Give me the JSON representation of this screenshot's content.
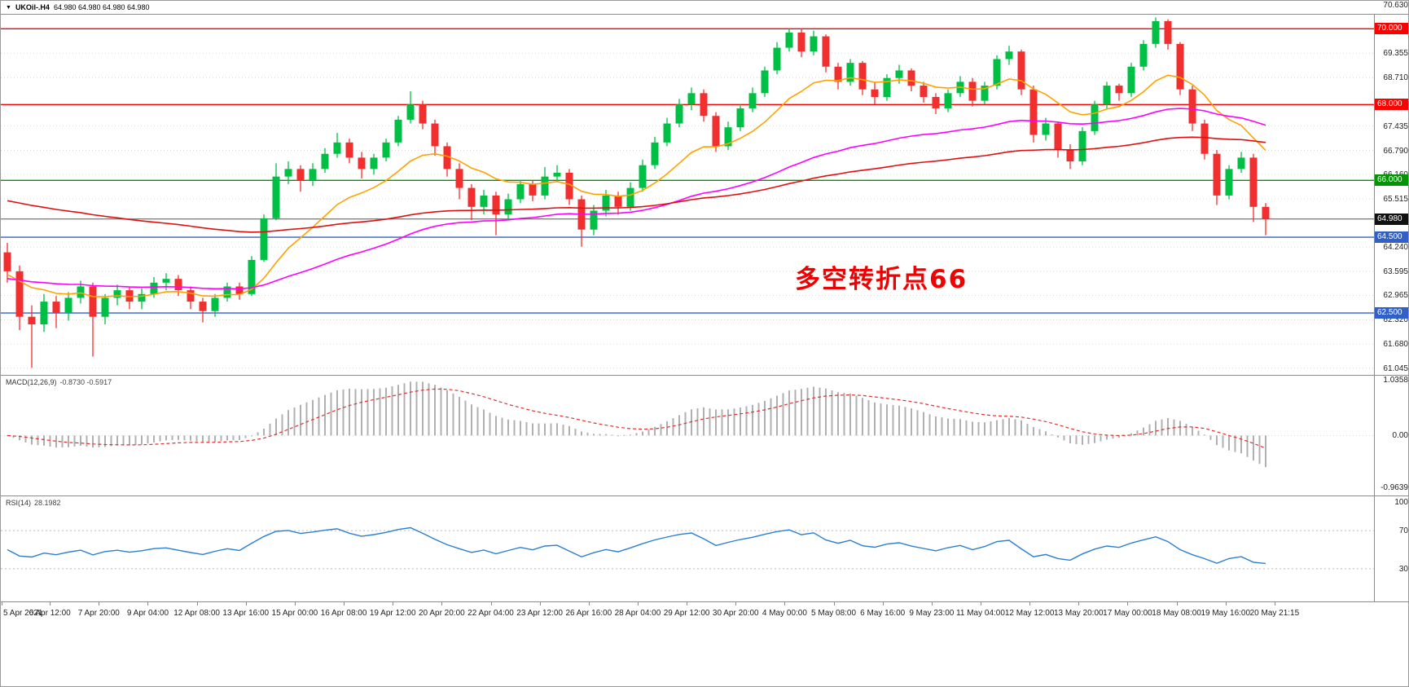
{
  "header": {
    "symbol": "UKOil-.H4",
    "ohlc": "64.980 64.980 64.980 64.980"
  },
  "chart_data": {
    "type": "candlestick",
    "symbol": "UKOil-",
    "timeframe": "H4",
    "title": "UKOil-.H4 64.980 64.980 64.980 64.980",
    "price_axis": {
      "max": 70.63,
      "min": 61.045,
      "labels": [
        "70.630",
        "69.355",
        "68.710",
        "67.435",
        "66.790",
        "66.160",
        "65.515",
        "64.240",
        "63.595",
        "62.965",
        "62.320",
        "61.680",
        "61.045"
      ]
    },
    "hlines": [
      {
        "label": "70.000",
        "color_key": "level_red"
      },
      {
        "label": "68.000",
        "color_key": "level_red"
      },
      {
        "label": "66.000",
        "color_key": "level_green"
      },
      {
        "label": "64.500",
        "color_key": "level_blue"
      },
      {
        "label": "62.500",
        "color_key": "level_blue"
      }
    ],
    "current_price": {
      "label": "64.980"
    },
    "annotation": {
      "text": "多空转折点66",
      "color": "#f00000"
    },
    "time_labels": [
      "5 Apr 2021",
      "6 Apr 12:00",
      "7 Apr 20:00",
      "9 Apr 04:00",
      "12 Apr 08:00",
      "13 Apr 16:00",
      "15 Apr 00:00",
      "16 Apr 08:00",
      "19 Apr 12:00",
      "20 Apr 20:00",
      "22 Apr 04:00",
      "23 Apr 12:00",
      "26 Apr 16:00",
      "28 Apr 04:00",
      "29 Apr 12:00",
      "30 Apr 20:00",
      "4 May 00:00",
      "5 May 08:00",
      "6 May 16:00",
      "9 May 23:00",
      "11 May 04:00",
      "12 May 12:00",
      "13 May 20:00",
      "17 May 00:00",
      "18 May 08:00",
      "19 May 16:00",
      "20 May 21:15"
    ],
    "candles": [
      [
        64.1,
        64.35,
        63.3,
        63.6
      ],
      [
        63.6,
        63.75,
        62.05,
        62.4
      ],
      [
        62.4,
        62.7,
        61.05,
        62.2
      ],
      [
        62.2,
        63.0,
        62.0,
        62.8
      ],
      [
        62.8,
        62.95,
        62.1,
        62.5
      ],
      [
        62.5,
        63.05,
        62.3,
        62.9
      ],
      [
        62.9,
        63.35,
        62.75,
        63.2
      ],
      [
        63.2,
        63.3,
        61.35,
        62.4
      ],
      [
        62.4,
        63.0,
        62.2,
        62.9
      ],
      [
        62.9,
        63.25,
        62.7,
        63.1
      ],
      [
        63.1,
        63.2,
        62.6,
        62.8
      ],
      [
        62.8,
        63.15,
        62.6,
        63.0
      ],
      [
        63.0,
        63.45,
        62.9,
        63.3
      ],
      [
        63.3,
        63.55,
        63.1,
        63.4
      ],
      [
        63.4,
        63.5,
        62.95,
        63.1
      ],
      [
        63.1,
        63.2,
        62.6,
        62.8
      ],
      [
        62.8,
        62.9,
        62.25,
        62.55
      ],
      [
        62.55,
        63.0,
        62.4,
        62.9
      ],
      [
        62.9,
        63.3,
        62.8,
        63.2
      ],
      [
        63.2,
        63.3,
        62.85,
        63.0
      ],
      [
        63.0,
        64.0,
        62.95,
        63.9
      ],
      [
        63.9,
        65.1,
        63.85,
        65.0
      ],
      [
        65.0,
        66.45,
        64.95,
        66.1
      ],
      [
        66.1,
        66.5,
        65.9,
        66.3
      ],
      [
        66.3,
        66.4,
        65.7,
        66.0
      ],
      [
        66.0,
        66.45,
        65.85,
        66.3
      ],
      [
        66.3,
        66.85,
        66.2,
        66.7
      ],
      [
        66.7,
        67.25,
        66.6,
        67.0
      ],
      [
        67.0,
        67.1,
        66.45,
        66.6
      ],
      [
        66.6,
        66.75,
        66.05,
        66.3
      ],
      [
        66.3,
        66.7,
        66.15,
        66.6
      ],
      [
        66.6,
        67.1,
        66.5,
        67.0
      ],
      [
        67.0,
        67.7,
        66.9,
        67.6
      ],
      [
        67.6,
        68.35,
        67.5,
        68.0
      ],
      [
        68.0,
        68.1,
        67.35,
        67.5
      ],
      [
        67.5,
        67.6,
        66.65,
        66.9
      ],
      [
        66.9,
        67.0,
        66.1,
        66.3
      ],
      [
        66.3,
        66.45,
        65.5,
        65.8
      ],
      [
        65.8,
        65.9,
        64.95,
        65.3
      ],
      [
        65.3,
        65.75,
        65.1,
        65.6
      ],
      [
        65.6,
        65.7,
        64.55,
        65.1
      ],
      [
        65.1,
        65.65,
        64.95,
        65.5
      ],
      [
        65.5,
        66.0,
        65.4,
        65.9
      ],
      [
        65.9,
        66.0,
        65.45,
        65.6
      ],
      [
        65.6,
        66.35,
        65.5,
        66.1
      ],
      [
        66.1,
        66.4,
        65.95,
        66.2
      ],
      [
        66.2,
        66.3,
        65.35,
        65.5
      ],
      [
        65.5,
        65.6,
        64.25,
        64.7
      ],
      [
        64.7,
        65.35,
        64.55,
        65.2
      ],
      [
        65.2,
        65.75,
        65.05,
        65.6
      ],
      [
        65.6,
        65.7,
        65.1,
        65.3
      ],
      [
        65.3,
        65.95,
        65.2,
        65.8
      ],
      [
        65.8,
        66.55,
        65.7,
        66.4
      ],
      [
        66.4,
        67.15,
        66.3,
        67.0
      ],
      [
        67.0,
        67.65,
        66.9,
        67.5
      ],
      [
        67.5,
        68.15,
        67.4,
        68.0
      ],
      [
        68.0,
        68.45,
        67.85,
        68.3
      ],
      [
        68.3,
        68.4,
        67.55,
        67.7
      ],
      [
        67.7,
        67.8,
        66.75,
        66.9
      ],
      [
        66.9,
        67.55,
        66.8,
        67.4
      ],
      [
        67.4,
        68.0,
        67.3,
        67.9
      ],
      [
        67.9,
        68.45,
        67.8,
        68.3
      ],
      [
        68.3,
        69.0,
        68.2,
        68.9
      ],
      [
        68.9,
        69.65,
        68.8,
        69.5
      ],
      [
        69.5,
        70.0,
        69.4,
        69.9
      ],
      [
        69.9,
        70.0,
        69.25,
        69.4
      ],
      [
        69.4,
        69.95,
        69.3,
        69.8
      ],
      [
        69.8,
        69.85,
        68.85,
        69.0
      ],
      [
        69.0,
        69.1,
        68.4,
        68.6
      ],
      [
        68.6,
        69.2,
        68.5,
        69.1
      ],
      [
        69.1,
        69.15,
        68.25,
        68.4
      ],
      [
        68.4,
        68.6,
        68.0,
        68.2
      ],
      [
        68.2,
        68.8,
        68.1,
        68.7
      ],
      [
        68.7,
        69.05,
        68.55,
        68.9
      ],
      [
        68.9,
        68.95,
        68.35,
        68.5
      ],
      [
        68.5,
        68.6,
        68.05,
        68.2
      ],
      [
        68.2,
        68.3,
        67.75,
        67.9
      ],
      [
        67.9,
        68.4,
        67.8,
        68.3
      ],
      [
        68.3,
        68.75,
        68.2,
        68.6
      ],
      [
        68.6,
        68.7,
        67.95,
        68.1
      ],
      [
        68.1,
        68.6,
        68.0,
        68.5
      ],
      [
        68.5,
        69.3,
        68.4,
        69.2
      ],
      [
        69.2,
        69.55,
        69.05,
        69.4
      ],
      [
        69.4,
        69.45,
        68.25,
        68.4
      ],
      [
        68.4,
        68.5,
        67.0,
        67.2
      ],
      [
        67.2,
        67.65,
        67.05,
        67.5
      ],
      [
        67.5,
        67.55,
        66.6,
        66.8
      ],
      [
        66.8,
        66.95,
        66.3,
        66.5
      ],
      [
        66.5,
        67.4,
        66.4,
        67.3
      ],
      [
        67.3,
        68.1,
        67.2,
        68.0
      ],
      [
        68.0,
        68.6,
        67.9,
        68.5
      ],
      [
        68.5,
        68.55,
        68.1,
        68.3
      ],
      [
        68.3,
        69.1,
        68.2,
        69.0
      ],
      [
        69.0,
        69.7,
        68.9,
        69.6
      ],
      [
        69.6,
        70.3,
        69.5,
        70.2
      ],
      [
        70.2,
        70.25,
        69.45,
        69.6
      ],
      [
        69.6,
        69.65,
        68.25,
        68.4
      ],
      [
        68.4,
        68.5,
        67.3,
        67.5
      ],
      [
        67.5,
        67.6,
        66.55,
        66.7
      ],
      [
        66.7,
        66.8,
        65.35,
        65.6
      ],
      [
        65.6,
        66.4,
        65.5,
        66.3
      ],
      [
        66.3,
        66.75,
        66.2,
        66.6
      ],
      [
        66.6,
        66.7,
        64.9,
        65.3
      ],
      [
        65.3,
        65.4,
        64.55,
        64.98
      ]
    ],
    "indicators": {
      "macd": {
        "label": "MACD(12,26,9)",
        "values_text": "-0.8730 -0.5917",
        "axis_labels": [
          "1.0358",
          "0.00",
          "-0.9639"
        ],
        "axis_values": [
          1.0358,
          0,
          -0.9639
        ]
      },
      "rsi": {
        "label": "RSI(14)",
        "value_text": "28.1982",
        "axis_labels": [
          "100",
          "70",
          "30"
        ],
        "axis_values": [
          100,
          70,
          30
        ],
        "levels": [
          70,
          30
        ]
      }
    },
    "colors": {
      "up_candle": "#00bf45",
      "down_candle": "#f22f2f",
      "ma_fast": "#ffa200",
      "ma_mid": "#ff00ff",
      "ma_slow": "#e01010",
      "macd_histogram": "#b0b0b0",
      "macd_signal": "#e03030",
      "rsi_line": "#2a7fd4",
      "level_red": "#ff0000",
      "level_green": "#009600",
      "level_blue": "#3060c8",
      "current_price_box": "#111111",
      "grid": "#d6d6d6"
    }
  }
}
